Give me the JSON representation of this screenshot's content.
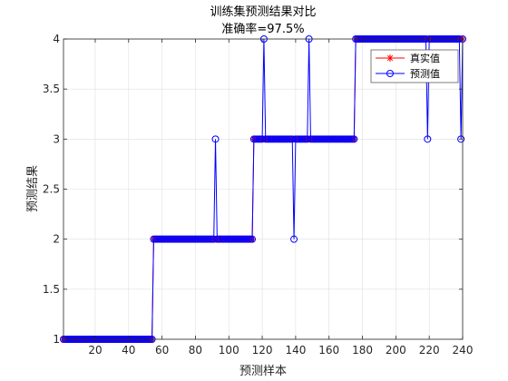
{
  "chart_data": {
    "type": "line",
    "title": "训练集预测结果对比",
    "subtitle": "准确率=97.5%",
    "xlabel": "预测样本",
    "ylabel": "预测结果",
    "xlim": [
      1,
      240
    ],
    "ylim": [
      1,
      4
    ],
    "xticks": [
      20,
      40,
      60,
      80,
      100,
      120,
      140,
      160,
      180,
      200,
      220,
      240
    ],
    "yticks": [
      1,
      1.5,
      2,
      2.5,
      3,
      3.5,
      4
    ],
    "grid": true,
    "legend_position": "top-right",
    "series": [
      {
        "name": "真实值",
        "color": "#ff0000",
        "marker": "asterisk",
        "segments": [
          {
            "from": 1,
            "to": 54,
            "value": 1
          },
          {
            "from": 55,
            "to": 114,
            "value": 2
          },
          {
            "from": 115,
            "to": 175,
            "value": 3
          },
          {
            "from": 176,
            "to": 240,
            "value": 4
          }
        ]
      },
      {
        "name": "预测值",
        "color": "#0000ff",
        "marker": "circle",
        "segments": [
          {
            "from": 1,
            "to": 54,
            "value": 1
          },
          {
            "from": 55,
            "to": 114,
            "value": 2
          },
          {
            "from": 115,
            "to": 175,
            "value": 3
          },
          {
            "from": 176,
            "to": 240,
            "value": 4
          }
        ],
        "errors": [
          {
            "x": 92,
            "value": 3
          },
          {
            "x": 121,
            "value": 4
          },
          {
            "x": 139,
            "value": 2
          },
          {
            "x": 148,
            "value": 4
          },
          {
            "x": 219,
            "value": 3
          },
          {
            "x": 239,
            "value": 3
          }
        ]
      }
    ]
  }
}
